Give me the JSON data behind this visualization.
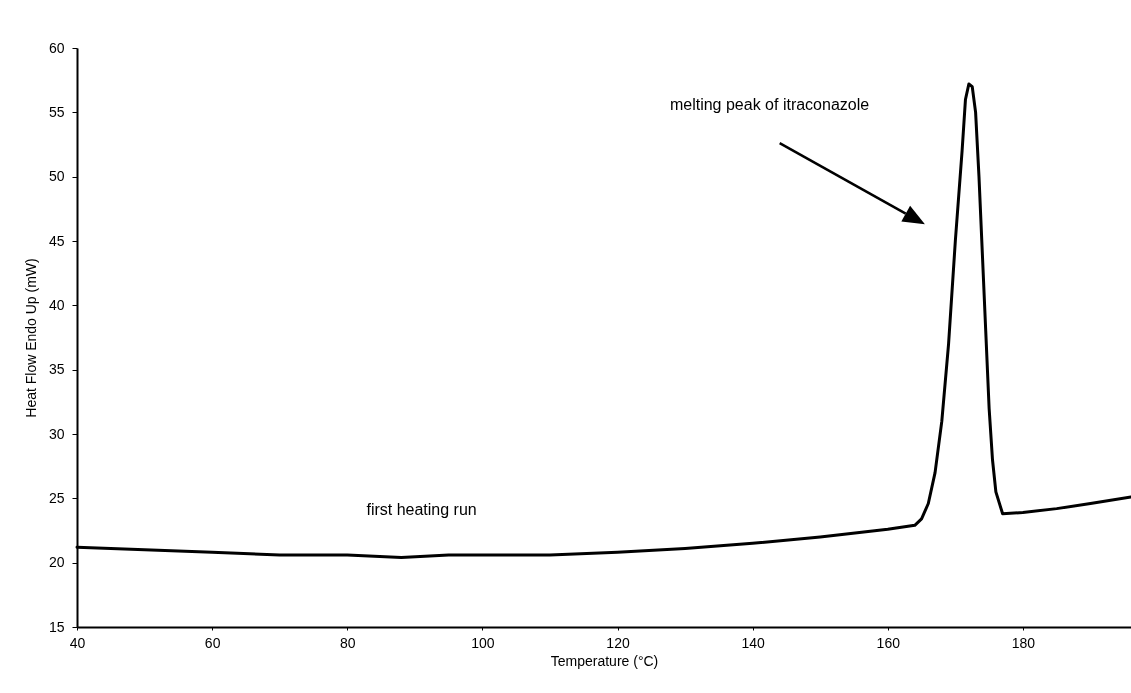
{
  "chart_data": {
    "type": "line",
    "xlabel": "Temperature (°C)",
    "ylabel": "Heat Flow Endo Up (mW)",
    "x": [
      40,
      50,
      60,
      70,
      80,
      88,
      95,
      100,
      110,
      120,
      130,
      140,
      150,
      160,
      164,
      165,
      166,
      167,
      168,
      169,
      170,
      171,
      171.5,
      172,
      172.5,
      173,
      173.5,
      174,
      174.5,
      175,
      175.5,
      176,
      177,
      180,
      185,
      190,
      196
    ],
    "series": [
      {
        "color": "#000000",
        "values": [
          21.2,
          21.0,
          20.8,
          20.6,
          20.6,
          20.4,
          20.6,
          20.6,
          20.6,
          20.8,
          21.1,
          21.5,
          22.0,
          22.6,
          22.9,
          23.4,
          24.6,
          27,
          31,
          37,
          45,
          52,
          56,
          57.2,
          57,
          55,
          50,
          44,
          38,
          32,
          28,
          25.5,
          23.8,
          23.9,
          24.2,
          24.6,
          25.1
        ]
      }
    ],
    "xlim": [
      40,
      196
    ],
    "xticks": [
      40,
      60,
      80,
      100,
      120,
      140,
      160,
      180
    ],
    "ylim": [
      15,
      60
    ],
    "yticks": [
      15,
      20,
      25,
      30,
      35,
      40,
      45,
      50,
      55,
      60
    ],
    "grid": false,
    "marker": "none",
    "line_style": "solid",
    "annotations": [
      "melting peak of itraconazole",
      "first heating run"
    ]
  }
}
